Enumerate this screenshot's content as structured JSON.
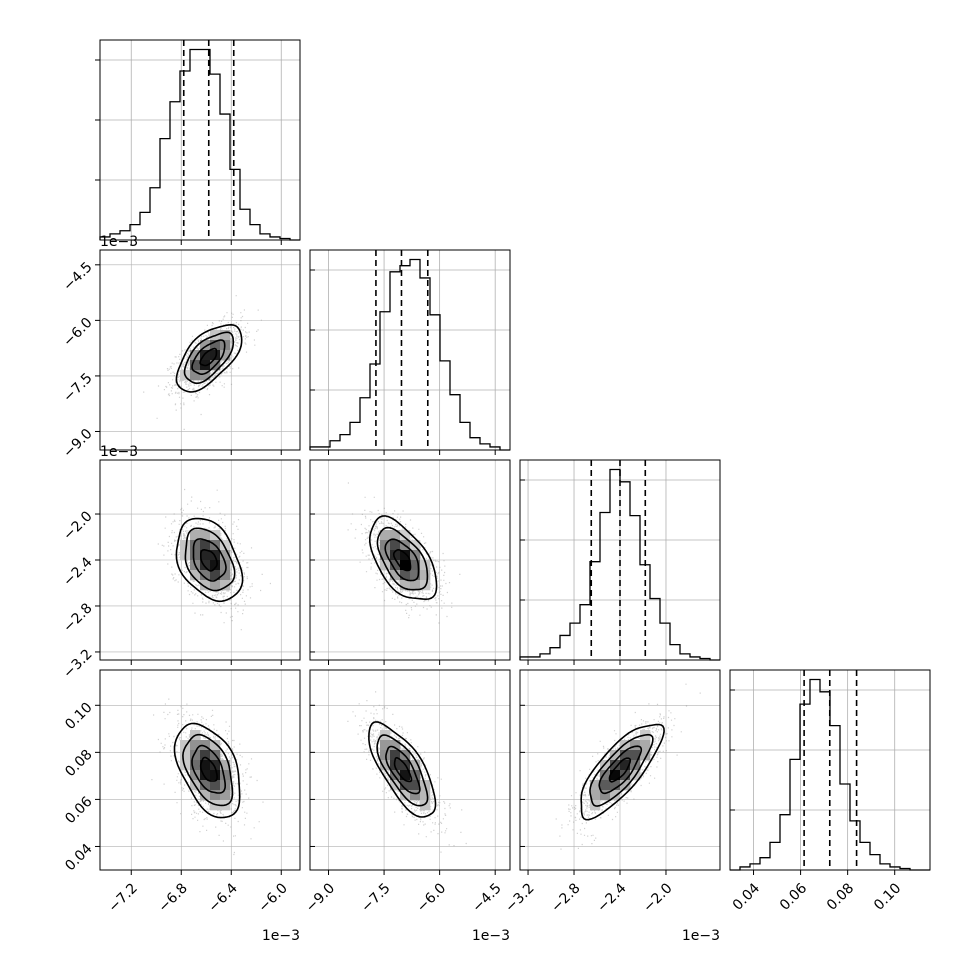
{
  "chart_data": {
    "type": "corner",
    "n_params": 4,
    "title": "",
    "params": [
      {
        "index": 0,
        "range": [
          -0.00745,
          -0.00585
        ],
        "ticks": [
          -0.0072,
          -0.0068,
          -0.0064,
          -0.006
        ],
        "tick_labels": [
          "−7.2",
          "−6.8",
          "−6.4",
          "−6.0"
        ],
        "offset_label": "1e−3",
        "mean": -0.00658,
        "sd": 0.00013,
        "quantiles": [
          -0.00678,
          -0.00658,
          -0.00638
        ],
        "hist_counts": [
          1,
          2,
          3,
          5,
          9,
          17,
          33,
          45,
          55,
          62,
          62,
          54,
          41,
          23,
          10,
          5,
          2,
          1,
          0.5,
          0
        ]
      },
      {
        "index": 1,
        "range": [
          -0.0095,
          -0.0041
        ],
        "ticks": [
          -0.009,
          -0.0075,
          -0.006,
          -0.0045
        ],
        "tick_labels": [
          "−9.0",
          "−7.5",
          "−6.0",
          "−4.5"
        ],
        "offset_label": "1e−3",
        "mean": -0.007,
        "sd": 0.00045,
        "quantiles": [
          -0.00772,
          -0.00703,
          -0.00632
        ],
        "hist_counts": [
          1,
          1,
          3,
          5,
          9,
          17,
          28,
          45,
          58,
          60,
          62,
          56,
          44,
          29,
          18,
          9,
          4,
          2,
          1,
          0
        ]
      },
      {
        "index": 2,
        "range": [
          -0.00327,
          -0.00153
        ],
        "ticks": [
          -0.0032,
          -0.0028,
          -0.0024,
          -0.002
        ],
        "tick_labels": [
          "−3.2",
          "−2.8",
          "−2.4",
          "−2.0"
        ],
        "offset_label": "1e−3",
        "mean": -0.0024,
        "sd": 0.00018,
        "quantiles": [
          -0.00265,
          -0.0024,
          -0.00218
        ],
        "hist_counts": [
          1,
          1,
          2,
          4,
          8,
          12,
          18,
          32,
          48,
          62,
          58,
          47,
          31,
          20,
          12,
          5,
          2,
          1,
          0.5,
          0
        ]
      },
      {
        "index": 3,
        "range": [
          0.03,
          0.115
        ],
        "ticks": [
          0.04,
          0.06,
          0.08,
          0.1
        ],
        "tick_labels": [
          "0.04",
          "0.06",
          "0.08",
          "0.10"
        ],
        "offset_label": "",
        "mean": 0.0725,
        "sd": 0.01,
        "quantiles": [
          0.0615,
          0.0724,
          0.0838
        ],
        "hist_counts": [
          0,
          1,
          2,
          4,
          9,
          18,
          36,
          54,
          62,
          58,
          47,
          28,
          16,
          9,
          5,
          2,
          1,
          0.5,
          0,
          0
        ]
      }
    ],
    "correlations": {
      "1-0": 0.6,
      "2-0": -0.35,
      "2-1": -0.55,
      "3-0": -0.45,
      "3-1": -0.72,
      "3-2": 0.78
    },
    "histogram_y_ticks": [
      0.3,
      0.6,
      0.9
    ],
    "contour_levels_sigma": [
      0.5,
      1.0,
      1.5,
      2.0
    ],
    "grid": true,
    "colors": {
      "line": "#000000",
      "grid": "#b0b0b0",
      "points": "#9a9a9a",
      "frame": "#000000"
    }
  }
}
